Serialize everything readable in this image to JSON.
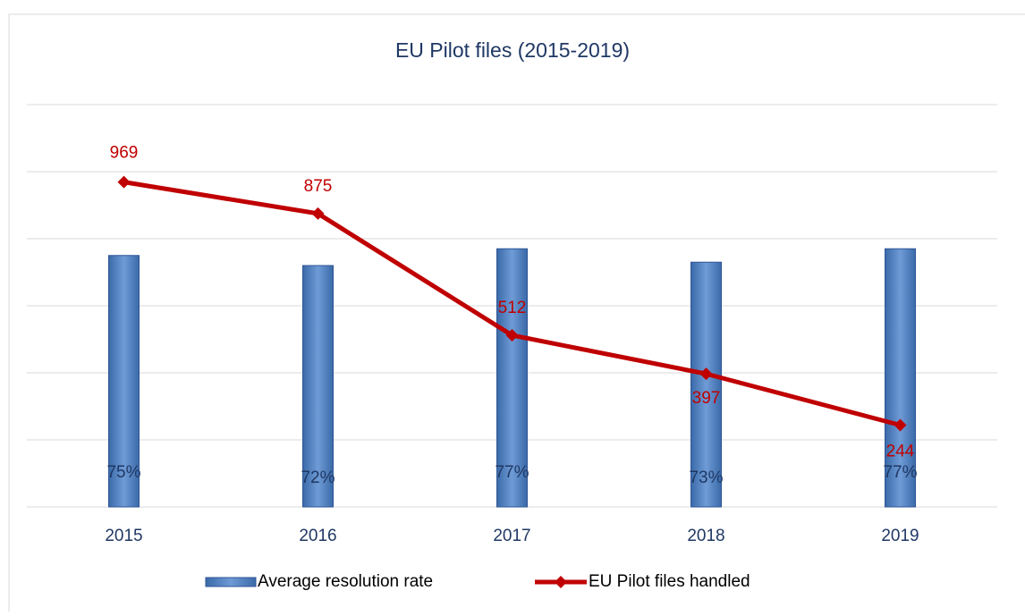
{
  "chart_data": {
    "type": "bar",
    "title": "EU Pilot files (2015-2019)",
    "categories": [
      "2015",
      "2016",
      "2017",
      "2018",
      "2019"
    ],
    "series": [
      {
        "name": "Average resolution rate",
        "type": "bar",
        "color": "#4f81bd",
        "values": [
          75,
          72,
          77,
          73,
          77
        ],
        "value_labels": [
          "75%",
          "72%",
          "77%",
          "73%",
          "77%"
        ]
      },
      {
        "name": "EU Pilot files handled",
        "type": "line",
        "axis": "y2",
        "color": "#c00000",
        "values": [
          969,
          875,
          512,
          397,
          244
        ]
      }
    ],
    "ylim": [
      0,
      120
    ],
    "yticks": [
      0,
      20,
      40,
      60,
      80,
      100,
      120
    ],
    "y2lim": [
      0,
      1200
    ],
    "y2ticks": [
      0,
      200,
      400,
      600,
      800,
      1000,
      1200
    ],
    "grid": true,
    "legend": "bottom"
  }
}
